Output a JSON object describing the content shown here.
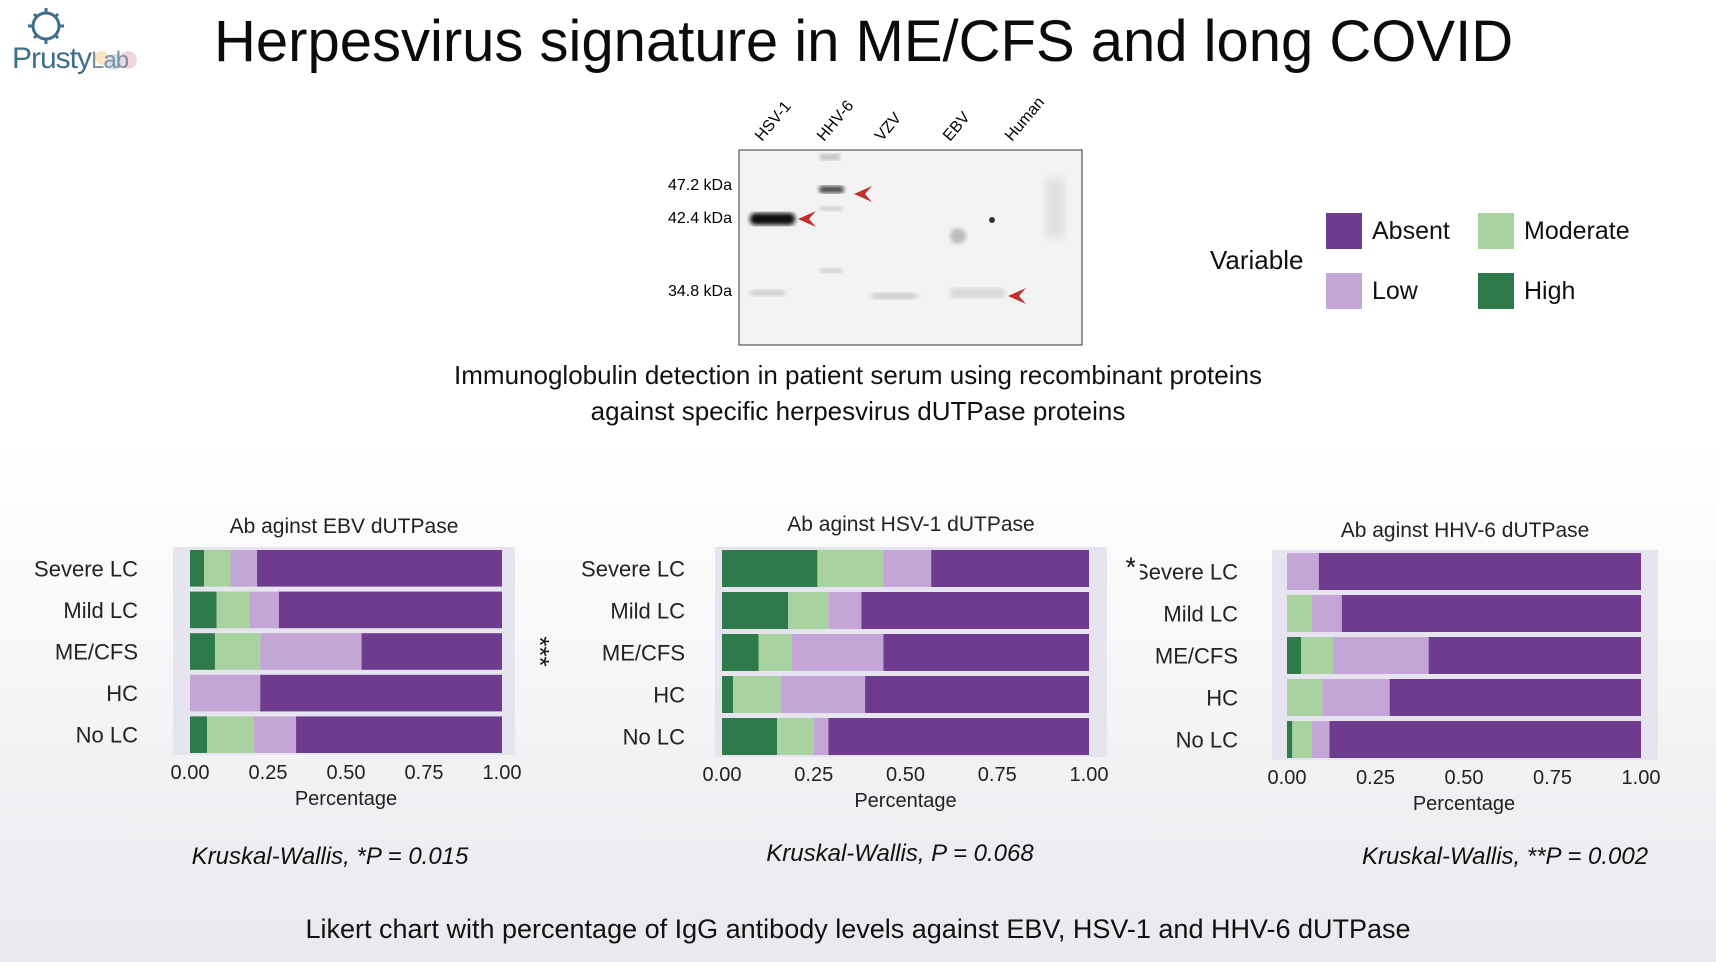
{
  "logo": {
    "text_main": "Prusty",
    "text_sub": "Lab"
  },
  "title": "Herpesvirus signature in ME/CFS and long COVID",
  "blot": {
    "lanes": [
      "HSV-1",
      "HHV-6",
      "VZV",
      "EBV",
      "Human"
    ],
    "markers": [
      "47.2 kDa",
      "42.4 kDa",
      "34.8 kDa"
    ]
  },
  "legend": {
    "title": "Variable",
    "items": [
      {
        "label": "Absent",
        "color": "#6e3b8f"
      },
      {
        "label": "Moderate",
        "color": "#a8d3a0"
      },
      {
        "label": "Low",
        "color": "#c3a6d6"
      },
      {
        "label": "High",
        "color": "#2f7a4a"
      }
    ]
  },
  "caption1": {
    "line1": "Immunoglobulin detection in patient serum using recombinant proteins",
    "line2": "against specific herpesvirus dUTPase proteins"
  },
  "chart_data": [
    {
      "type": "bar",
      "stacked": "horizontal",
      "title": "Ab aginst EBV dUTPase",
      "xlabel": "Percentage",
      "xlim": [
        0,
        1
      ],
      "xticks": [
        "0.00",
        "0.25",
        "0.50",
        "0.75",
        "1.00"
      ],
      "categories": [
        "Severe LC",
        "Mild LC",
        "ME/CFS",
        "HC",
        "No LC"
      ],
      "series": [
        {
          "name": "High",
          "color": "#2f7a4a",
          "values": [
            0.045,
            0.085,
            0.08,
            0.0,
            0.055
          ]
        },
        {
          "name": "Moderate",
          "color": "#a8d3a0",
          "values": [
            0.085,
            0.105,
            0.145,
            0.0,
            0.15
          ]
        },
        {
          "name": "Low",
          "color": "#c3a6d6",
          "values": [
            0.085,
            0.095,
            0.325,
            0.225,
            0.135
          ]
        },
        {
          "name": "Absent",
          "color": "#6e3b8f",
          "values": [
            0.785,
            0.715,
            0.45,
            0.775,
            0.66
          ]
        }
      ],
      "significance": {
        "marker": "***",
        "row": "ME/CFS"
      },
      "stat": "Kruskal-Wallis, *P = 0.015"
    },
    {
      "type": "bar",
      "stacked": "horizontal",
      "title": "Ab aginst HSV-1 dUTPase",
      "xlabel": "Percentage",
      "xlim": [
        0,
        1
      ],
      "xticks": [
        "0.00",
        "0.25",
        "0.50",
        "0.75",
        "1.00"
      ],
      "categories": [
        "Severe LC",
        "Mild LC",
        "ME/CFS",
        "HC",
        "No LC"
      ],
      "series": [
        {
          "name": "High",
          "color": "#2f7a4a",
          "values": [
            0.26,
            0.18,
            0.1,
            0.03,
            0.15
          ]
        },
        {
          "name": "Moderate",
          "color": "#a8d3a0",
          "values": [
            0.18,
            0.11,
            0.09,
            0.13,
            0.1
          ]
        },
        {
          "name": "Low",
          "color": "#c3a6d6",
          "values": [
            0.13,
            0.09,
            0.25,
            0.23,
            0.04
          ]
        },
        {
          "name": "Absent",
          "color": "#6e3b8f",
          "values": [
            0.43,
            0.62,
            0.56,
            0.61,
            0.71
          ]
        }
      ],
      "significance": {
        "marker": "*",
        "row": "Severe LC"
      },
      "stat": "Kruskal-Wallis, P = 0.068"
    },
    {
      "type": "bar",
      "stacked": "horizontal",
      "title": "Ab aginst HHV-6 dUTPase",
      "xlabel": "Percentage",
      "xlim": [
        0,
        1
      ],
      "xticks": [
        "0.00",
        "0.25",
        "0.50",
        "0.75",
        "1.00"
      ],
      "categories": [
        "Severe LC",
        "Mild LC",
        "ME/CFS",
        "HC",
        "No LC"
      ],
      "series": [
        {
          "name": "High",
          "color": "#2f7a4a",
          "values": [
            0.0,
            0.0,
            0.04,
            0.0,
            0.015
          ]
        },
        {
          "name": "Moderate",
          "color": "#a8d3a0",
          "values": [
            0.0,
            0.07,
            0.09,
            0.1,
            0.055
          ]
        },
        {
          "name": "Low",
          "color": "#c3a6d6",
          "values": [
            0.09,
            0.085,
            0.27,
            0.19,
            0.05
          ]
        },
        {
          "name": "Absent",
          "color": "#6e3b8f",
          "values": [
            0.91,
            0.845,
            0.6,
            0.71,
            0.88
          ]
        }
      ],
      "stat": "Kruskal-Wallis, **P = 0.002"
    }
  ],
  "caption2": "Likert chart with percentage of IgG antibody levels against EBV, HSV-1 and HHV-6 dUTPase"
}
